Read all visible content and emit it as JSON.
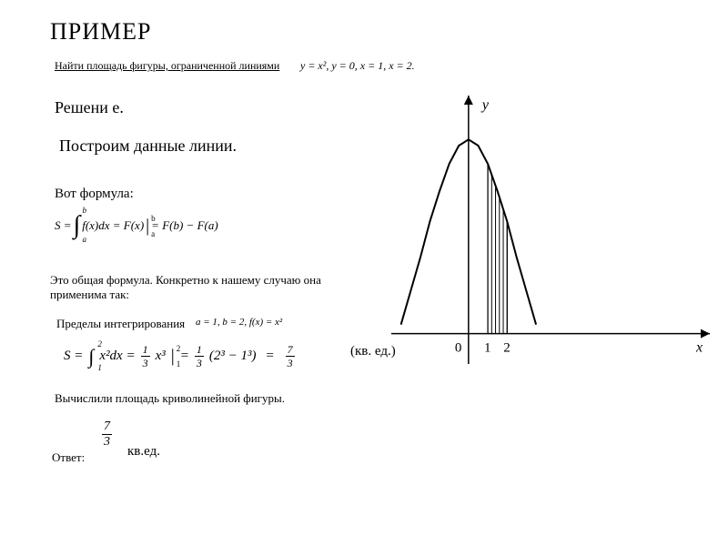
{
  "title": "ПРИМЕР",
  "prompt": "Найти площадь фигуры, ограниченной линиями",
  "given": "y = x², y = 0, x = 1, x = 2.",
  "solution_label": "Решени\nе.",
  "build_lines": "Построим данные линии.",
  "formula_label": "Вот формула:",
  "formula_integral": {
    "lhs": "S =",
    "upper": "b",
    "lower": "a",
    "integrand": "f(x)dx = F(x)",
    "eval_upper": "b",
    "eval_lower": "a",
    "rhs": "= F(b) − F(a)"
  },
  "explain1": "Это общая формула. Конкретно к нашему случаю она применима так:",
  "limits_label": "Пределы интегрирования",
  "limits_eq": "a = 1, b = 2, f(x) = x²",
  "calc": {
    "lhs": "S =",
    "int_lower": "1",
    "int_upper": "2",
    "integrand": "x²dx =",
    "frac1_num": "1",
    "frac1_den": "3",
    "after_frac1": "x³",
    "eval_upper": "2",
    "eval_lower": "1",
    "eq2": "=",
    "frac2_num": "1",
    "frac2_den": "3",
    "paren": "(2³ − 1³)",
    "eq3": "=",
    "result_num": "7",
    "result_den": "3"
  },
  "unit_label": "(кв. ед.)",
  "computed": "Вычислили площадь криволинейной фигуры.",
  "answer_label": "Ответ:",
  "answer_frac_num": "7",
  "answer_frac_den": "3",
  "answer_unit": "кв.ед.",
  "graph": {
    "y_label": "y",
    "x_label": "x",
    "origin_label": "0",
    "x_ticks": [
      "1",
      "2"
    ],
    "axis_color": "#000000",
    "curve_color": "#000000",
    "hatch_color": "#000000",
    "background": "#ffffff",
    "curve_points": [
      [
        -70,
        6
      ],
      [
        -60,
        28
      ],
      [
        -50,
        50
      ],
      [
        -40,
        74
      ],
      [
        -30,
        94
      ],
      [
        -20,
        112
      ],
      [
        -10,
        124
      ],
      [
        0,
        128
      ],
      [
        10,
        124
      ],
      [
        20,
        112
      ],
      [
        30,
        94
      ],
      [
        40,
        74
      ],
      [
        50,
        50
      ],
      [
        60,
        28
      ],
      [
        70,
        6
      ]
    ],
    "xlim": [
      -80,
      250
    ],
    "ylim": [
      -20,
      160
    ],
    "hatch_x1": 20,
    "hatch_x2": 40,
    "line_width": 1.5
  }
}
